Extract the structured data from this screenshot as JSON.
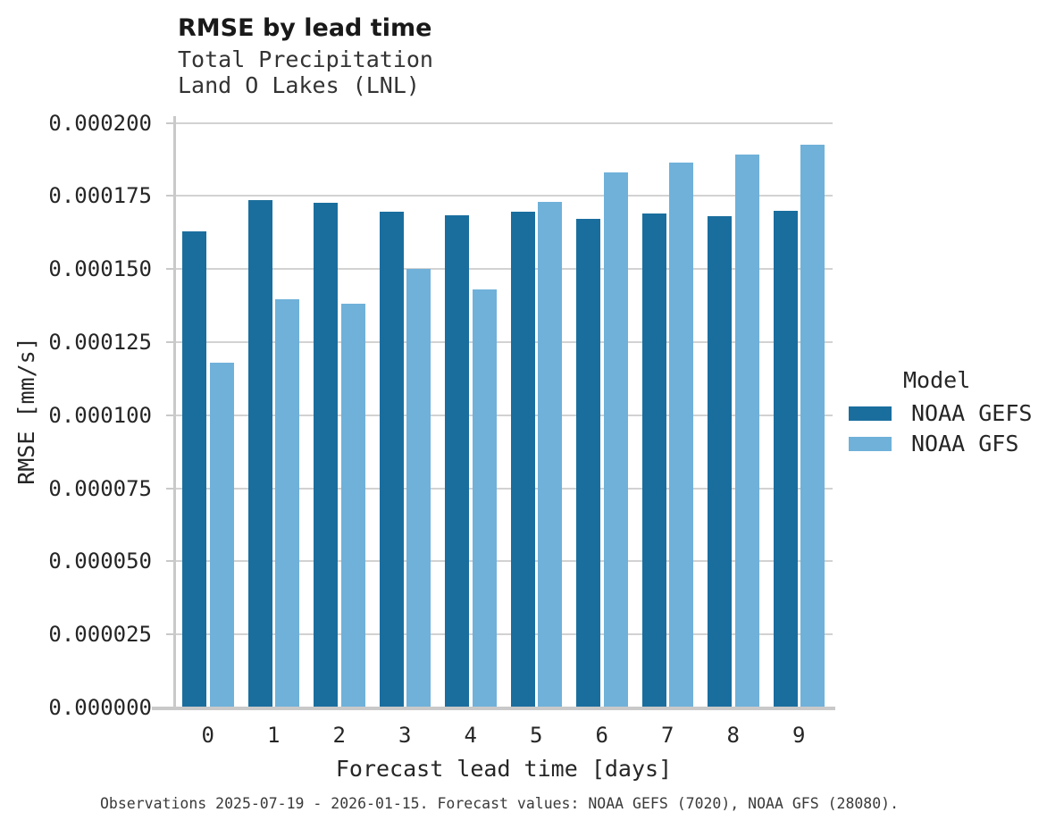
{
  "chart_data": {
    "type": "bar",
    "title": "RMSE by lead time",
    "subtitle_line1": "Total Precipitation",
    "subtitle_line2": "Land O Lakes (LNL)",
    "xlabel": "Forecast lead time [days]",
    "ylabel": "RMSE [mm/s]",
    "categories": [
      "0",
      "1",
      "2",
      "3",
      "4",
      "5",
      "6",
      "7",
      "8",
      "9"
    ],
    "series": [
      {
        "name": "NOAA GEFS",
        "color": "#1a6e9e",
        "values": [
          0.000163,
          0.0001735,
          0.0001725,
          0.0001695,
          0.0001685,
          0.0001695,
          0.000167,
          0.000169,
          0.000168,
          0.00017
        ]
      },
      {
        "name": "NOAA GFS",
        "color": "#6fb1d9",
        "values": [
          0.000118,
          0.0001395,
          0.000138,
          0.00015,
          0.000143,
          0.000173,
          0.000183,
          0.0001865,
          0.000189,
          0.0001925
        ]
      }
    ],
    "ylim": [
      0,
      0.0002
    ],
    "yticks": [
      "0.000000",
      "0.000025",
      "0.000050",
      "0.000075",
      "0.000100",
      "0.000125",
      "0.000150",
      "0.000175",
      "0.000200"
    ],
    "grid": true,
    "legend_title": "Model",
    "legend_position": "right",
    "caption": "Observations 2025-07-19 - 2026-01-15. Forecast values: NOAA GEFS (7020), NOAA GFS (28080)."
  },
  "colors": {
    "grid": "#d2d2d2",
    "spine": "#c9c9c9",
    "text": "#262626"
  }
}
